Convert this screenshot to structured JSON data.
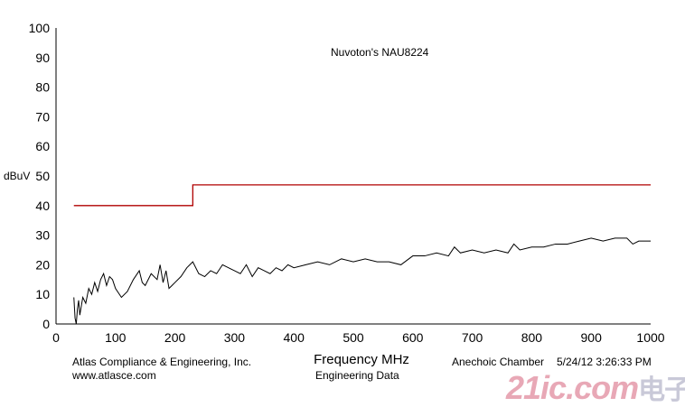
{
  "chart_data": {
    "type": "line",
    "title": "Nuvoton's NAU8224",
    "xlabel": "Frequency MHz",
    "ylabel": "dBuV",
    "xlim": [
      0,
      1000
    ],
    "ylim": [
      0,
      100
    ],
    "xticks": [
      0,
      100,
      200,
      300,
      400,
      500,
      600,
      700,
      800,
      900,
      1000
    ],
    "yticks": [
      0,
      10,
      20,
      30,
      40,
      50,
      60,
      70,
      80,
      90,
      100
    ],
    "grid": false,
    "limit_line": {
      "color": "#b00000",
      "x": [
        30,
        230,
        230,
        1000
      ],
      "y": [
        40,
        40,
        47,
        47
      ]
    },
    "measurement": {
      "color": "#000000",
      "x": [
        30,
        32,
        34,
        36,
        38,
        40,
        45,
        50,
        55,
        60,
        65,
        70,
        75,
        80,
        85,
        90,
        95,
        100,
        110,
        120,
        130,
        140,
        145,
        150,
        160,
        170,
        175,
        180,
        185,
        190,
        195,
        200,
        210,
        220,
        230,
        240,
        250,
        260,
        270,
        280,
        290,
        300,
        310,
        320,
        330,
        340,
        350,
        360,
        370,
        380,
        390,
        400,
        420,
        440,
        460,
        480,
        500,
        520,
        540,
        560,
        580,
        600,
        620,
        640,
        660,
        670,
        680,
        700,
        720,
        740,
        760,
        770,
        780,
        800,
        820,
        840,
        860,
        880,
        900,
        920,
        940,
        960,
        970,
        980,
        1000
      ],
      "y": [
        9,
        2,
        0,
        5,
        8,
        3,
        9,
        7,
        12,
        10,
        14,
        11,
        15,
        17,
        13,
        16,
        15,
        12,
        9,
        11,
        15,
        18,
        14,
        13,
        17,
        15,
        20,
        14,
        18,
        12,
        13,
        14,
        16,
        19,
        21,
        17,
        16,
        18,
        17,
        20,
        19,
        18,
        17,
        20,
        16,
        19,
        18,
        17,
        19,
        18,
        20,
        19,
        20,
        21,
        20,
        22,
        21,
        22,
        21,
        21,
        20,
        23,
        23,
        24,
        23,
        26,
        24,
        25,
        24,
        25,
        24,
        27,
        25,
        26,
        26,
        27,
        27,
        28,
        29,
        28,
        29,
        29,
        27,
        28,
        28
      ]
    }
  },
  "footer": {
    "company": "Atlas Compliance & Engineering, Inc.",
    "website": "www.atlasce.com",
    "data_type": "Engineering Data",
    "chamber": "Anechoic Chamber",
    "timestamp": "5/24/12 3:26:33 PM"
  },
  "watermark": {
    "text": "21ic.com",
    "cn_text": "电子网"
  }
}
